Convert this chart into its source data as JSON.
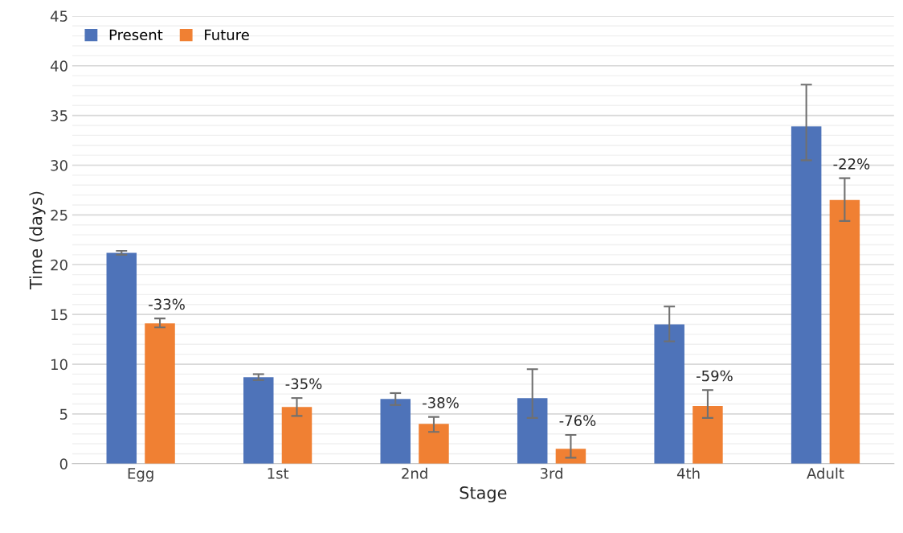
{
  "chart_data": {
    "type": "bar",
    "xlabel": "Stage",
    "ylabel": "Time (days)",
    "categories": [
      "Egg",
      "1st",
      "2nd",
      "3rd",
      "4th",
      "Adult"
    ],
    "series": [
      {
        "name": "Present",
        "color": "#4e73b9",
        "values": [
          21.2,
          8.7,
          6.5,
          6.6,
          14.0,
          33.9
        ],
        "errors": [
          [
            21.0,
            21.4
          ],
          [
            8.4,
            9.0
          ],
          [
            5.9,
            7.1
          ],
          [
            4.6,
            9.5
          ],
          [
            12.3,
            15.8
          ],
          [
            30.5,
            38.1
          ]
        ]
      },
      {
        "name": "Future",
        "color": "#f08033",
        "values": [
          14.1,
          5.7,
          4.0,
          1.5,
          5.8,
          26.5
        ],
        "errors": [
          [
            13.7,
            14.6
          ],
          [
            4.8,
            6.6
          ],
          [
            3.2,
            4.7
          ],
          [
            0.6,
            2.9
          ],
          [
            4.6,
            7.4
          ],
          [
            24.4,
            28.7
          ]
        ]
      }
    ],
    "annotations": [
      "-33%",
      "-35%",
      "-38%",
      "-76%",
      "-59%",
      "-22%"
    ],
    "ylim": [
      0,
      45
    ],
    "yticks": [
      0,
      5,
      10,
      15,
      20,
      25,
      30,
      35,
      40,
      45
    ],
    "grid": "y",
    "legend": "top left"
  }
}
